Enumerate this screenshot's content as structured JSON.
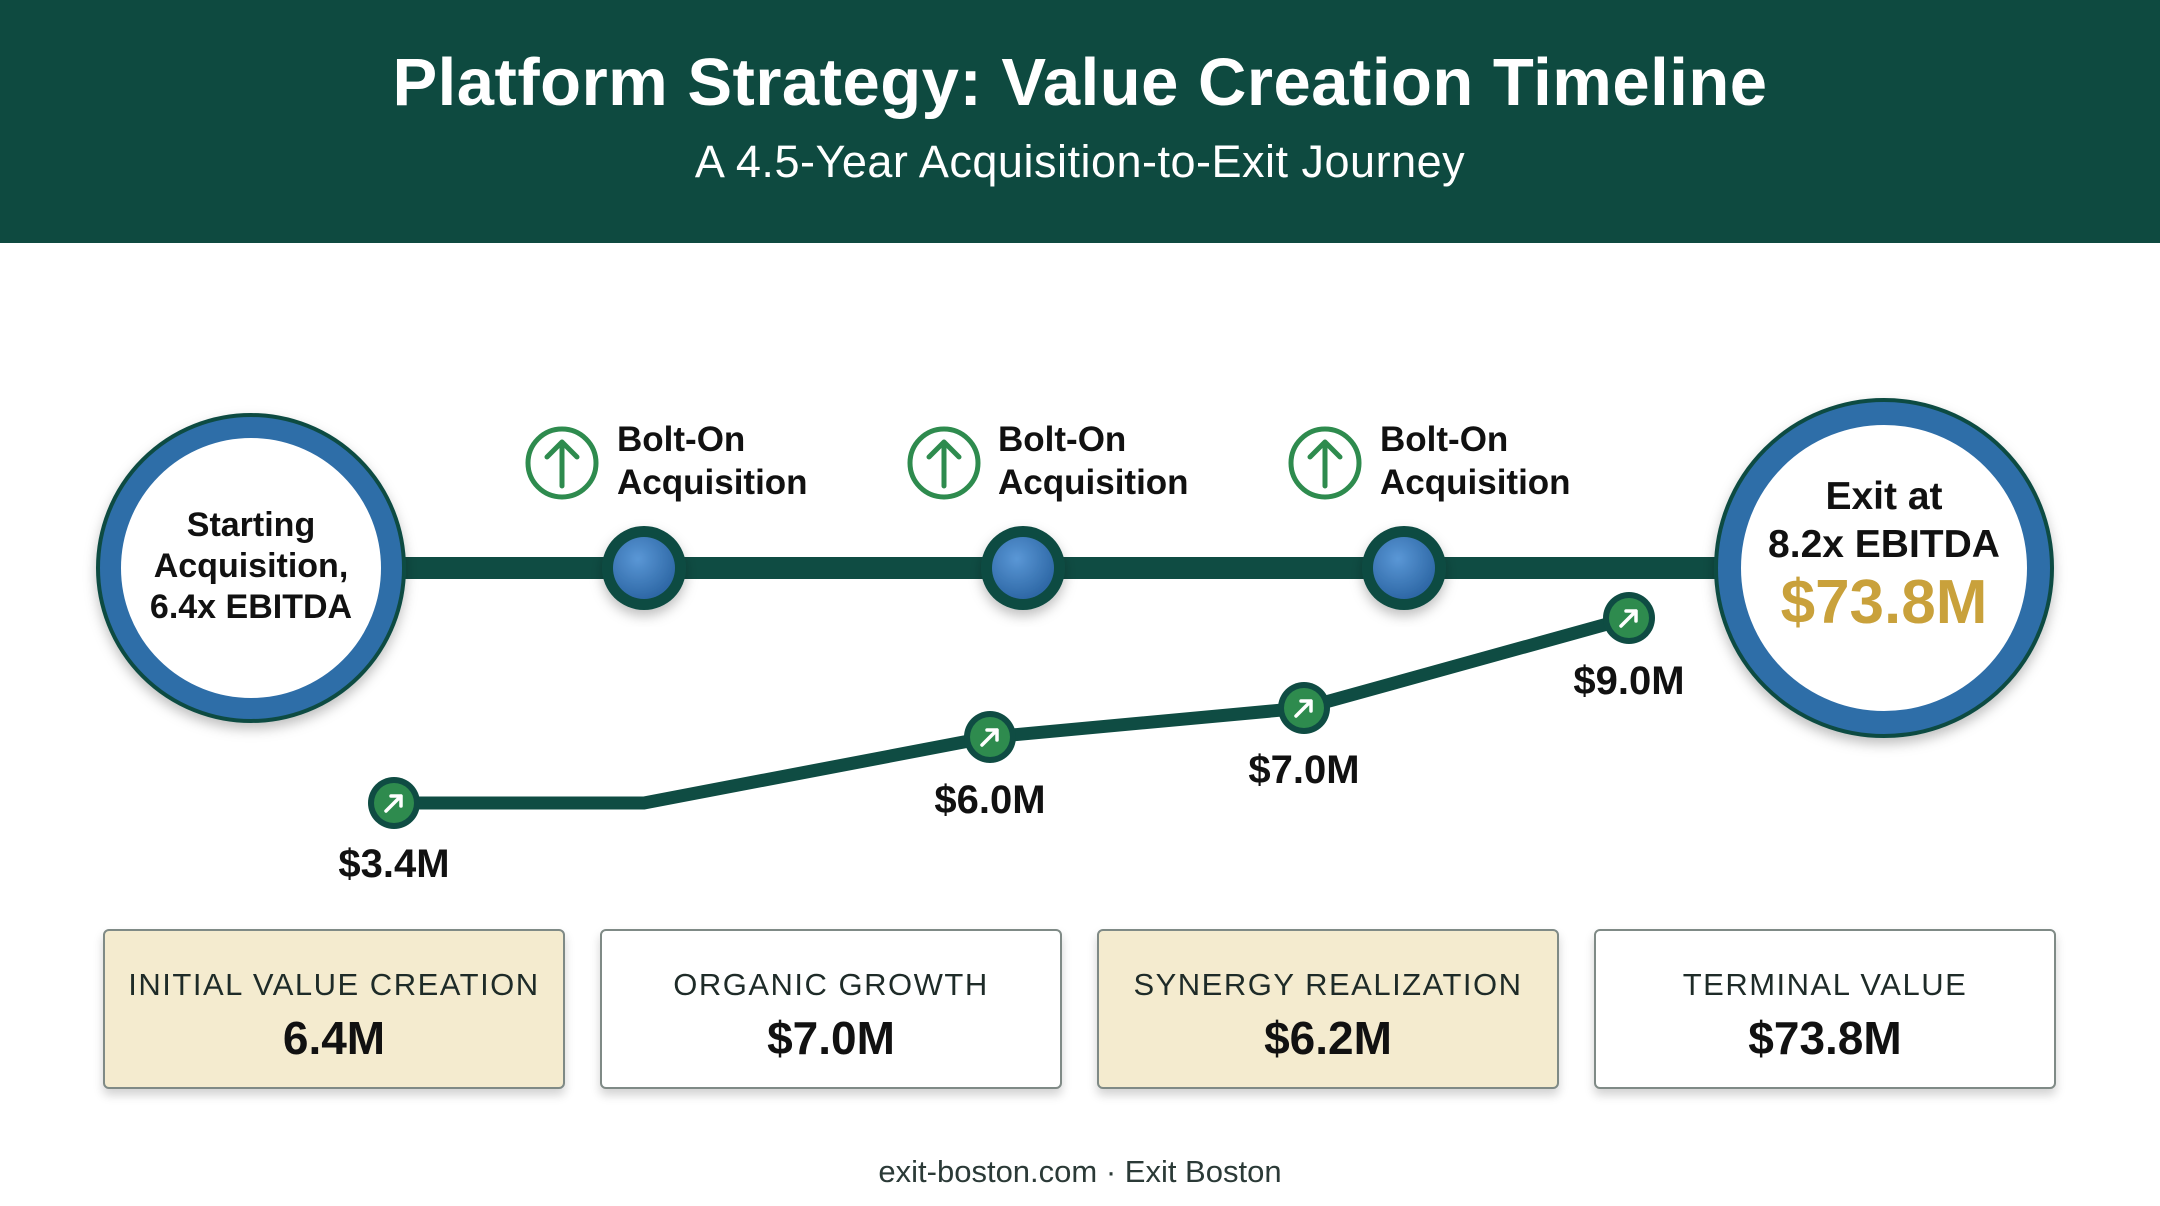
{
  "header": {
    "title": "Platform Strategy: Value Creation Timeline",
    "subtitle": "A 4.5-Year Acquisition-to-Exit Journey"
  },
  "timeline": {
    "start": {
      "lines": [
        "Starting",
        "Acquisition,",
        "6.4x EBITDA"
      ]
    },
    "milestones": [
      {
        "line1": "Bolt-On",
        "line2": "Acquisition",
        "icon": "arrow-up-circle-icon"
      },
      {
        "line1": "Bolt-On",
        "line2": "Acquisition",
        "icon": "arrow-up-circle-icon"
      },
      {
        "line1": "Bolt-On",
        "line2": "Acquisition",
        "icon": "arrow-up-circle-icon"
      }
    ],
    "exit": {
      "line1": "Exit at",
      "line2": "8.2x EBITDA",
      "value": "$73.8M"
    }
  },
  "ebitda_path": {
    "points": [
      {
        "label": "$3.4M",
        "value": 3.4
      },
      {
        "label": "$6.0M",
        "value": 6.0
      },
      {
        "label": "$7.0M",
        "value": 7.0
      },
      {
        "label": "$9.0M",
        "value": 9.0
      }
    ]
  },
  "cards": [
    {
      "label": "INITIAL VALUE CREATION",
      "value": "6.4M",
      "style": "tan"
    },
    {
      "label": "ORGANIC GROWTH",
      "value": "$7.0M",
      "style": "white"
    },
    {
      "label": "SYNERGY REALIZATION",
      "value": "$6.2M",
      "style": "tan"
    },
    {
      "label": "TERMINAL VALUE",
      "value": "$73.8M",
      "style": "white"
    }
  ],
  "footer": {
    "text": "exit-boston.com · Exit Boston"
  },
  "colors": {
    "header_bg": "#0e4a40",
    "track": "#0f4c43",
    "ring_blue": "#2f6ea8",
    "node_blue": "#3d7cc0",
    "icon_green": "#2e8b4e",
    "accent_gold": "#c9a13b",
    "card_tan": "#f4ebcf"
  }
}
